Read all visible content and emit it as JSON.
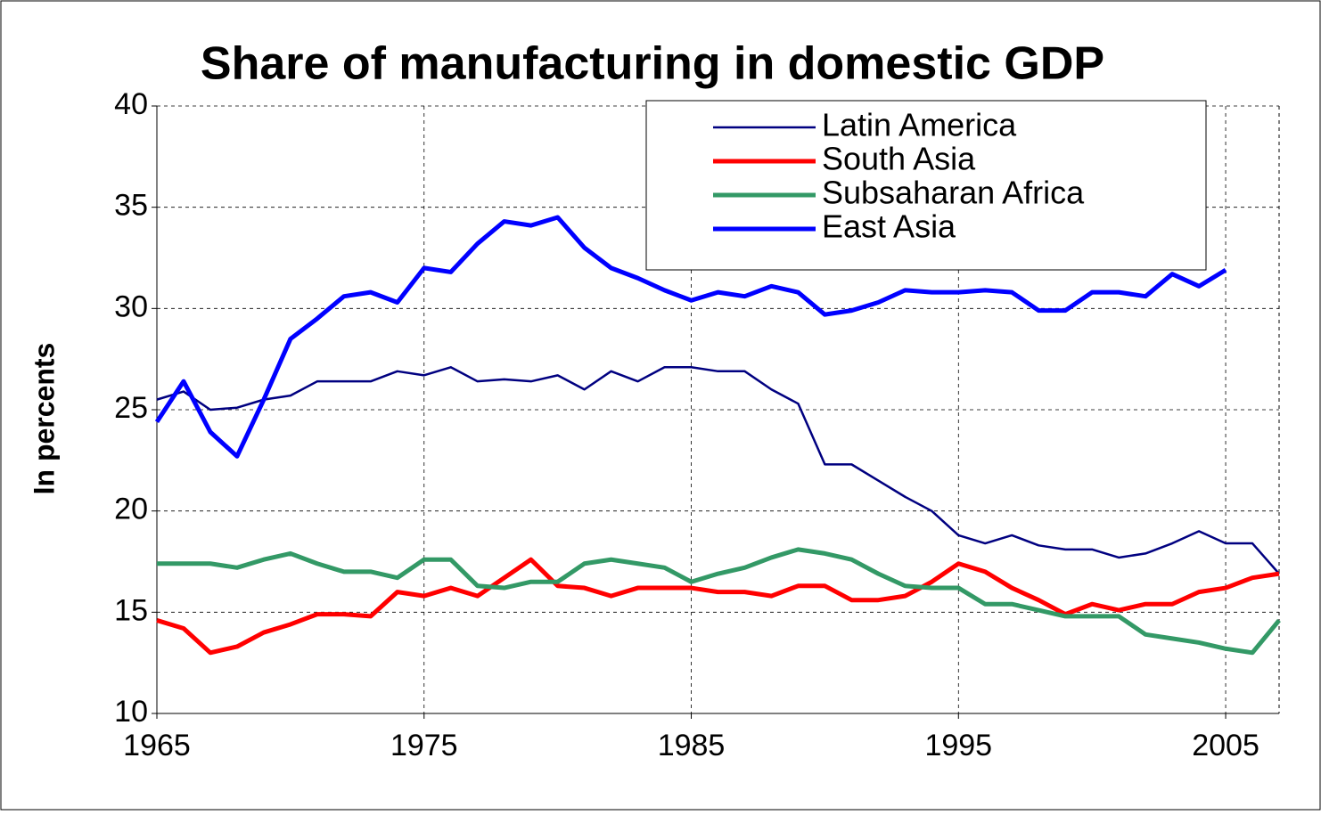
{
  "chart_data": {
    "type": "line",
    "title": "Share of manufacturing in domestic GDP",
    "y_label": "In percents",
    "x": [
      1965,
      1966,
      1967,
      1968,
      1969,
      1970,
      1971,
      1972,
      1973,
      1974,
      1975,
      1976,
      1977,
      1978,
      1979,
      1980,
      1981,
      1982,
      1983,
      1984,
      1985,
      1986,
      1987,
      1988,
      1989,
      1990,
      1991,
      1992,
      1993,
      1994,
      1995,
      1996,
      1997,
      1998,
      1999,
      2000,
      2001,
      2002,
      2003,
      2004,
      2005,
      2006,
      2007
    ],
    "series": [
      {
        "name": "Latin America",
        "color": "#000080",
        "width": 2.5,
        "values": [
          25.5,
          25.9,
          25.0,
          25.1,
          25.5,
          25.7,
          26.4,
          26.4,
          26.4,
          26.9,
          26.7,
          27.1,
          26.4,
          26.5,
          26.4,
          26.7,
          26.0,
          26.9,
          26.4,
          27.1,
          27.1,
          26.9,
          26.9,
          26.0,
          25.3,
          22.3,
          22.3,
          21.5,
          20.7,
          20.0,
          18.8,
          18.4,
          18.8,
          18.3,
          18.1,
          18.1,
          17.7,
          17.9,
          18.4,
          19.0,
          18.4,
          18.4,
          16.9
        ]
      },
      {
        "name": "South Asia",
        "color": "#ff0000",
        "width": 5,
        "values": [
          14.6,
          14.2,
          13.0,
          13.3,
          14.0,
          14.4,
          14.9,
          14.9,
          14.8,
          16.0,
          15.8,
          16.2,
          15.8,
          16.7,
          17.6,
          16.3,
          16.2,
          15.8,
          16.2,
          16.2,
          16.2,
          16.0,
          16.0,
          15.8,
          16.3,
          16.3,
          15.6,
          15.6,
          15.8,
          16.5,
          17.4,
          17.0,
          16.2,
          15.6,
          14.9,
          15.4,
          15.1,
          15.4,
          15.4,
          16.0,
          16.2,
          16.7,
          16.9
        ]
      },
      {
        "name": "Subsaharan Africa",
        "color": "#339966",
        "width": 5,
        "values": [
          17.4,
          17.4,
          17.4,
          17.2,
          17.6,
          17.9,
          17.4,
          17.0,
          17.0,
          16.7,
          17.6,
          17.6,
          16.3,
          16.2,
          16.5,
          16.5,
          17.4,
          17.6,
          17.4,
          17.2,
          16.5,
          16.9,
          17.2,
          17.7,
          18.1,
          17.9,
          17.6,
          16.9,
          16.3,
          16.2,
          16.2,
          15.4,
          15.4,
          15.1,
          14.8,
          14.8,
          14.8,
          13.9,
          13.7,
          13.5,
          13.2,
          13.0,
          14.6
        ]
      },
      {
        "name": "East Asia",
        "color": "#0000ff",
        "width": 5,
        "values": [
          24.4,
          26.4,
          23.9,
          22.7,
          25.5,
          28.5,
          29.5,
          30.6,
          30.8,
          30.3,
          32.0,
          31.8,
          33.2,
          34.3,
          34.1,
          34.5,
          33.0,
          32.0,
          31.5,
          30.9,
          30.4,
          30.8,
          30.6,
          31.1,
          30.8,
          29.7,
          29.9,
          30.3,
          30.9,
          30.8,
          30.8,
          30.9,
          30.8,
          29.9,
          29.9,
          30.8,
          30.8,
          30.6,
          31.7,
          31.1,
          31.9,
          null,
          null
        ]
      }
    ],
    "xlim": [
      1965,
      2007
    ],
    "xticks": [
      1965,
      1975,
      1985,
      1995,
      2005
    ],
    "ylim": [
      10,
      40
    ],
    "yticks": [
      10,
      15,
      20,
      25,
      30,
      35,
      40
    ],
    "grid": true,
    "legend": "upper right"
  }
}
